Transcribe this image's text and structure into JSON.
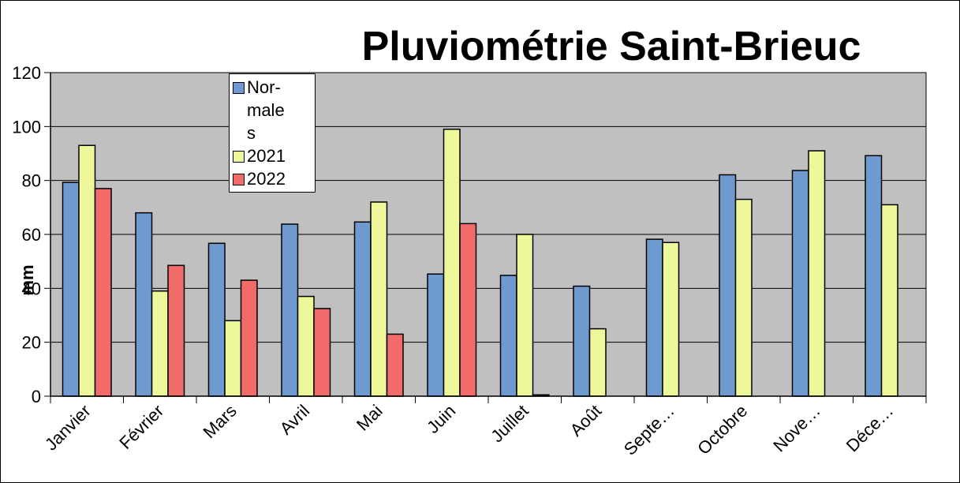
{
  "chart_data": {
    "type": "bar",
    "title": "Pluviométrie  Saint-Brieuc",
    "y_label": "mm",
    "categories": [
      "Janvier",
      "Février",
      "Mars",
      "Avril",
      "Mai",
      "Juin",
      "Juillet",
      "Août",
      "Septe…",
      "Octobre",
      "Nove…",
      "Déce…"
    ],
    "series": [
      {
        "name": "Nor-males",
        "color": "#6f9ad0",
        "values": [
          79.3,
          68,
          56.7,
          63.8,
          64.6,
          45.3,
          44.8,
          40.8,
          58.2,
          82.1,
          83.7,
          89.2
        ]
      },
      {
        "name": "2021",
        "color": "#eef79a",
        "values": [
          93,
          39,
          28,
          37,
          72,
          99,
          60,
          25,
          57,
          73,
          91,
          71
        ]
      },
      {
        "name": "2022",
        "color": "#f26b6b",
        "values": [
          77,
          48.5,
          43,
          32.5,
          23,
          64,
          0.5,
          null,
          null,
          null,
          null,
          null
        ]
      }
    ],
    "ylim": [
      0,
      120
    ],
    "yticks": [
      0,
      20,
      40,
      60,
      80,
      100,
      120
    ],
    "grid": true,
    "plot_background": "#c0c0c0"
  }
}
